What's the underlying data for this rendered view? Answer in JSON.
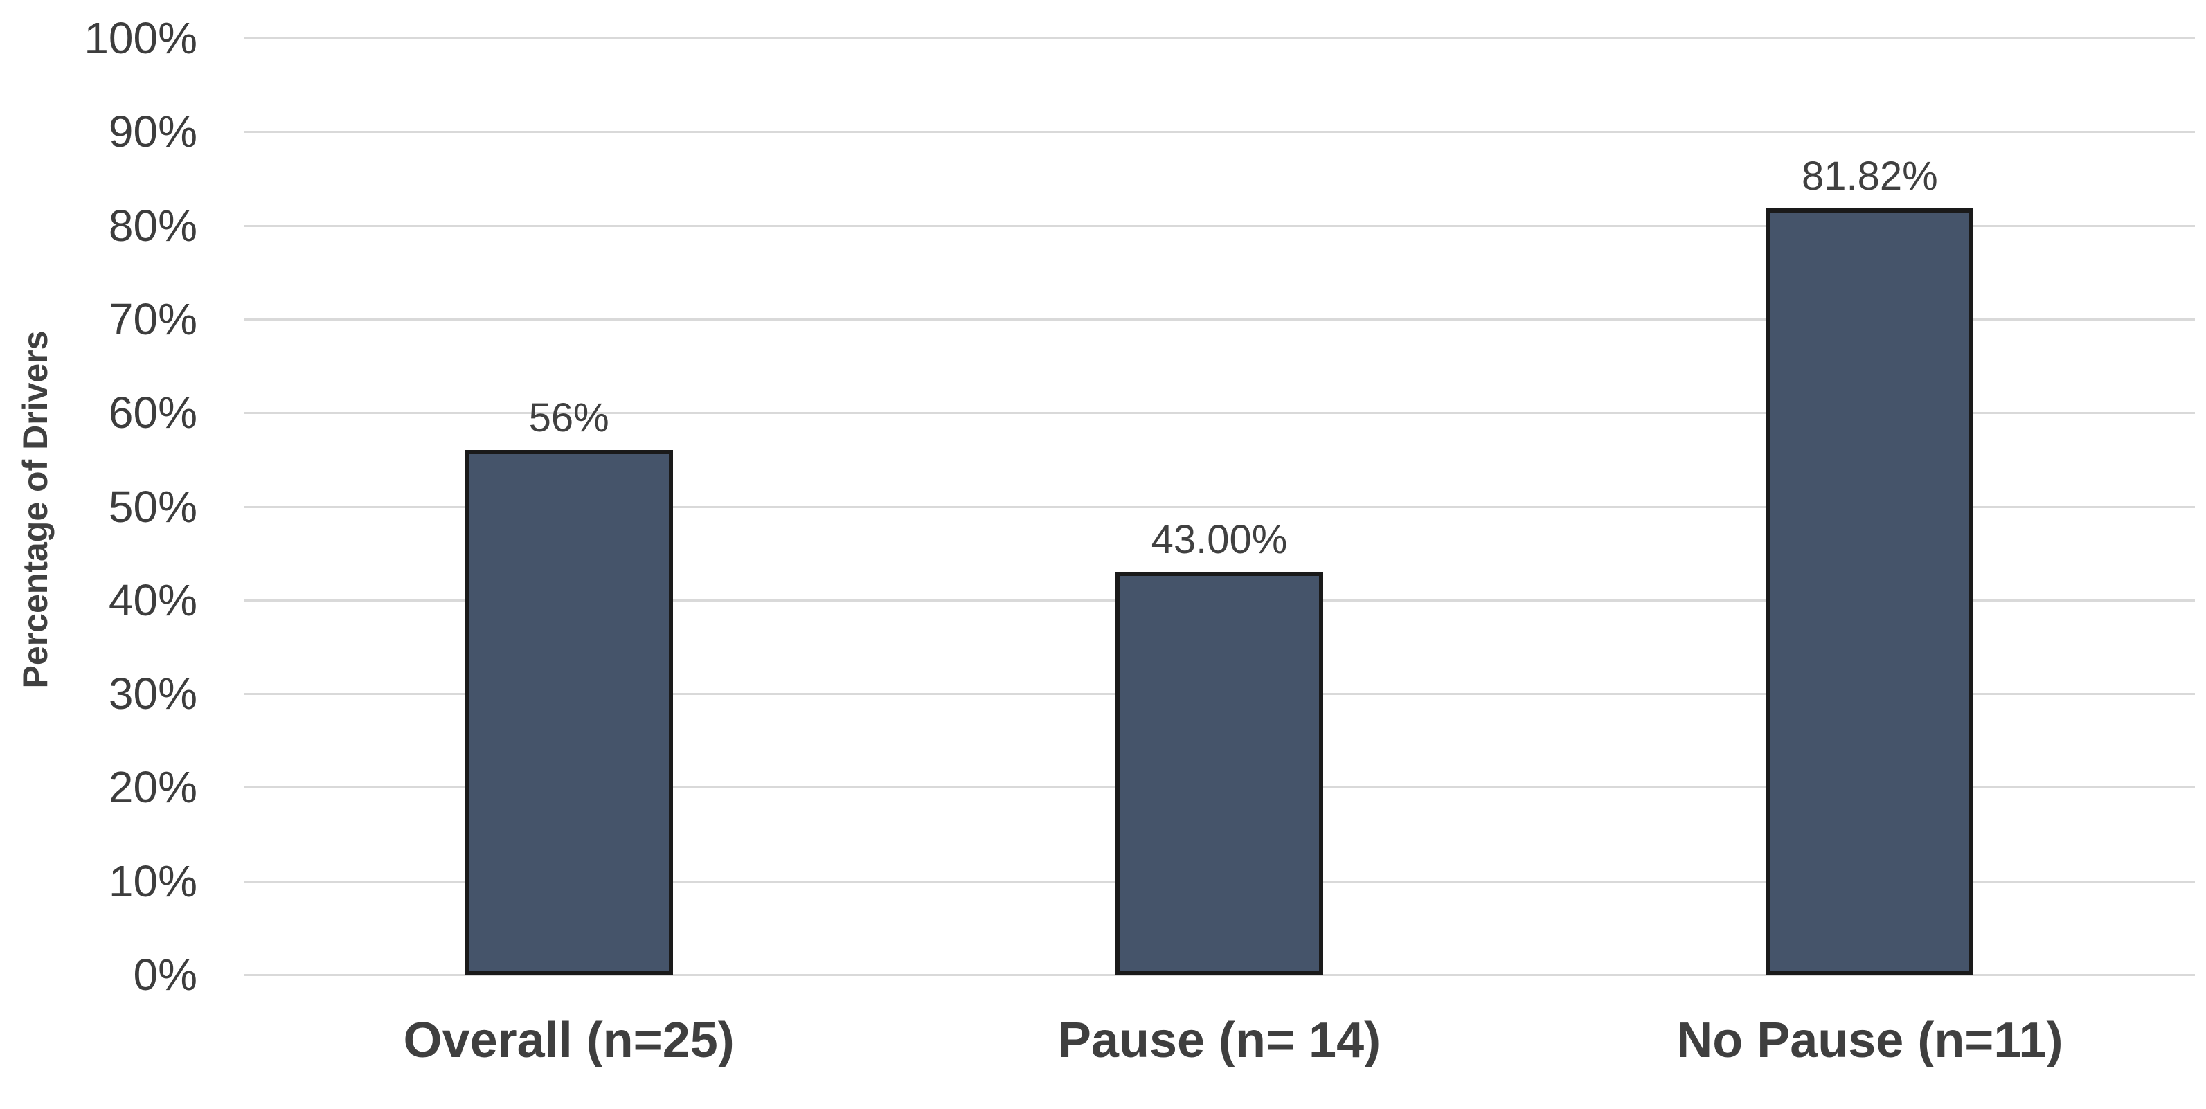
{
  "chart_data": {
    "type": "bar",
    "title": "",
    "ylabel": "Percentage of Drivers",
    "xlabel": "",
    "categories": [
      "Overall (n=25)",
      "Pause (n= 14)",
      "No Pause (n=11)"
    ],
    "values": [
      56,
      43,
      81.82
    ],
    "data_labels": [
      "56%",
      "43.00%",
      "81.82%"
    ],
    "ylim": [
      0,
      100
    ],
    "ytick_step": 10,
    "ytick_labels": [
      "0%",
      "10%",
      "20%",
      "30%",
      "40%",
      "50%",
      "60%",
      "70%",
      "80%",
      "90%",
      "100%"
    ],
    "grid": true,
    "legend_position": "none",
    "colors": {
      "bar_fill": "#45546A",
      "bar_border": "#1A1A1A",
      "gridline": "#D9D9D9",
      "axis_text": "#3D3D3D",
      "data_label_text": "#404040",
      "category_text": "#3F3F3F",
      "background": "#FFFFFF"
    }
  }
}
